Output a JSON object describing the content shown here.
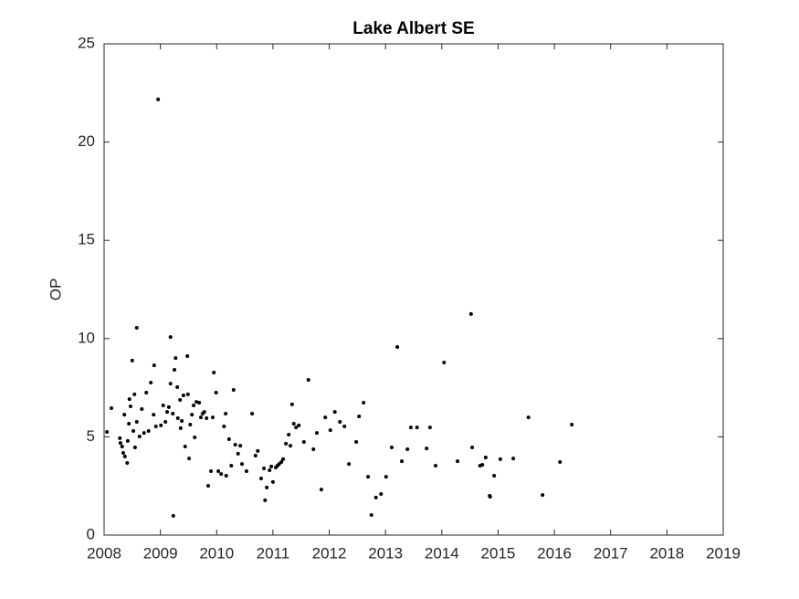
{
  "chart_data": {
    "type": "scatter",
    "title": "Lake Albert SE",
    "y_label": "OP",
    "xlim": [
      2008,
      2019
    ],
    "ylim": [
      0,
      25
    ],
    "xticks": [
      2008,
      2009,
      2010,
      2011,
      2012,
      2013,
      2014,
      2015,
      2016,
      2017,
      2018,
      2019
    ],
    "yticks": [
      0,
      5,
      10,
      15,
      20,
      25
    ],
    "grid": false,
    "color": "#000000",
    "x": [
      2008.05,
      2008.13,
      2008.28,
      2008.29,
      2008.32,
      2008.34,
      2008.37,
      2008.36,
      2008.41,
      2008.42,
      2008.44,
      2008.45,
      2008.47,
      2008.5,
      2008.52,
      2008.54,
      2008.55,
      2008.58,
      2008.58,
      2008.63,
      2008.67,
      2008.71,
      2008.75,
      2008.79,
      2008.83,
      2008.88,
      2008.89,
      2008.92,
      2008.96,
      2009.01,
      2009.05,
      2009.09,
      2009.12,
      2009.15,
      2009.18,
      2009.18,
      2009.22,
      2009.23,
      2009.25,
      2009.27,
      2009.3,
      2009.31,
      2009.35,
      2009.36,
      2009.38,
      2009.41,
      2009.44,
      2009.48,
      2009.49,
      2009.51,
      2009.53,
      2009.56,
      2009.59,
      2009.61,
      2009.64,
      2009.69,
      2009.72,
      2009.75,
      2009.78,
      2009.82,
      2009.85,
      2009.9,
      2009.93,
      2009.95,
      2009.99,
      2010.03,
      2010.08,
      2010.13,
      2010.16,
      2010.17,
      2010.22,
      2010.26,
      2010.3,
      2010.33,
      2010.38,
      2010.42,
      2010.45,
      2010.53,
      2010.63,
      2010.69,
      2010.73,
      2010.79,
      2010.84,
      2010.86,
      2010.89,
      2010.94,
      2010.97,
      2011.0,
      2011.05,
      2011.08,
      2011.11,
      2011.15,
      2011.18,
      2011.23,
      2011.28,
      2011.31,
      2011.34,
      2011.37,
      2011.41,
      2011.46,
      2011.55,
      2011.63,
      2011.72,
      2011.78,
      2011.86,
      2011.93,
      2012.02,
      2012.1,
      2012.19,
      2012.27,
      2012.35,
      2012.48,
      2012.53,
      2012.61,
      2012.69,
      2012.75,
      2012.83,
      2012.92,
      2013.01,
      2013.11,
      2013.21,
      2013.29,
      2013.39,
      2013.45,
      2013.56,
      2013.73,
      2013.79,
      2013.89,
      2014.04,
      2014.28,
      2014.52,
      2014.54,
      2014.68,
      2014.72,
      2014.78,
      2014.85,
      2014.86,
      2014.93,
      2015.04,
      2015.27,
      2015.54,
      2015.79,
      2016.1,
      2016.31
    ],
    "y": [
      5.25,
      6.46,
      4.93,
      4.69,
      4.51,
      4.18,
      4.0,
      6.13,
      3.67,
      4.79,
      5.67,
      6.92,
      6.55,
      8.88,
      5.3,
      7.16,
      4.46,
      5.76,
      10.55,
      5.02,
      6.41,
      5.2,
      7.25,
      5.3,
      7.76,
      6.13,
      8.64,
      5.53,
      22.17,
      5.58,
      6.6,
      5.76,
      6.27,
      6.51,
      10.08,
      7.71,
      6.18,
      0.98,
      8.41,
      9.01,
      7.53,
      5.95,
      6.88,
      5.44,
      5.81,
      7.11,
      4.51,
      9.11,
      7.16,
      3.9,
      5.62,
      6.13,
      6.6,
      4.97,
      6.78,
      6.74,
      5.99,
      6.18,
      6.27,
      5.95,
      2.51,
      3.25,
      5.99,
      8.27,
      7.25,
      3.25,
      3.11,
      5.53,
      6.18,
      3.02,
      4.88,
      3.53,
      7.39,
      4.6,
      4.14,
      4.55,
      3.62,
      3.25,
      6.18,
      4.04,
      4.28,
      2.88,
      3.39,
      1.77,
      2.42,
      3.3,
      3.49,
      2.7,
      3.44,
      3.53,
      3.62,
      3.72,
      3.86,
      4.65,
      5.11,
      4.55,
      6.65,
      5.67,
      5.48,
      5.58,
      4.74,
      7.9,
      4.37,
      5.2,
      2.32,
      5.99,
      5.34,
      6.27,
      5.76,
      5.53,
      3.62,
      4.74,
      6.04,
      6.74,
      2.97,
      1.02,
      1.91,
      2.09,
      2.97,
      4.46,
      9.57,
      3.76,
      4.37,
      5.48,
      5.48,
      4.41,
      5.48,
      3.53,
      8.78,
      3.76,
      11.25,
      4.46,
      3.53,
      3.58,
      3.95,
      2.0,
      1.95,
      3.02,
      3.86,
      3.9,
      5.99,
      2.04,
      3.72,
      5.62
    ]
  }
}
